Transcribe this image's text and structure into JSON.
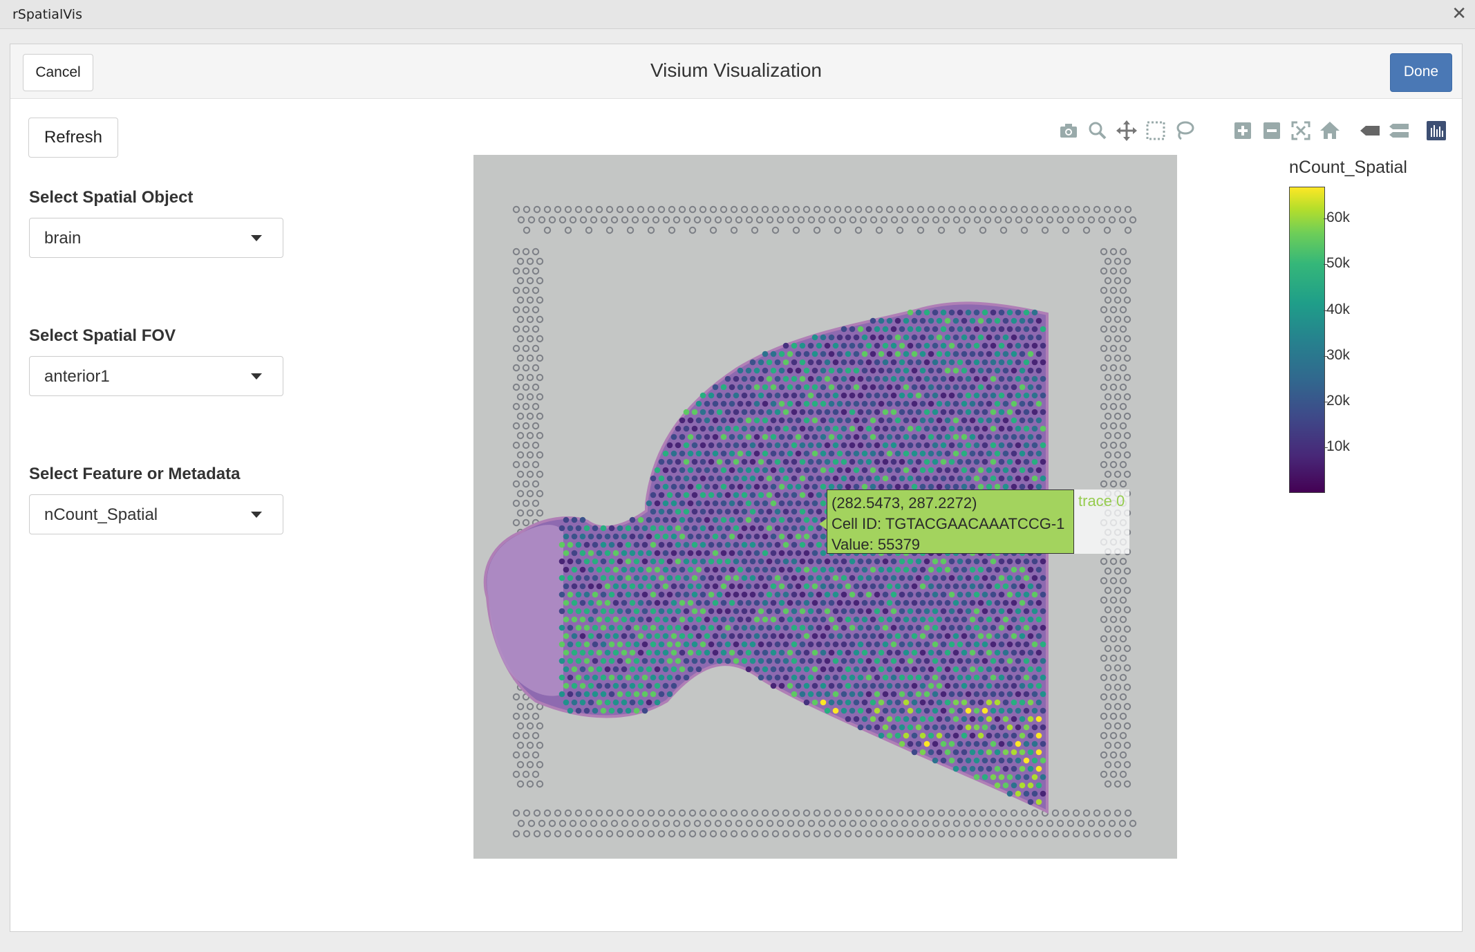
{
  "window": {
    "title": "rSpatialVis",
    "close_glyph": "✕"
  },
  "header": {
    "cancel_label": "Cancel",
    "title": "Visium Visualization",
    "done_label": "Done",
    "done_color": "#4a78b5"
  },
  "sidebar": {
    "refresh_label": "Refresh",
    "fields": [
      {
        "label": "Select Spatial Object",
        "value": "brain"
      },
      {
        "label": "Select Spatial FOV",
        "value": "anterior1"
      },
      {
        "label": "Select Feature or Metadata",
        "value": "nCount_Spatial"
      }
    ]
  },
  "toolbar": {
    "icons": [
      "camera-icon",
      "zoom-icon",
      "pan-icon",
      "box-select-icon",
      "lasso-select-icon",
      "zoom-in-icon",
      "zoom-out-icon",
      "autoscale-icon",
      "reset-axes-icon",
      "hover-closest-icon",
      "hover-compare-icon",
      "plotly-logo-icon"
    ]
  },
  "chart_data": {
    "type": "scatter",
    "title": "",
    "xlabel": "",
    "ylabel": "",
    "colorscale": "viridis",
    "color_range": [
      0,
      67000
    ],
    "colorbar": {
      "title": "nCount_Spatial",
      "ticks": [
        "60k",
        "50k",
        "40k",
        "30k",
        "20k",
        "10k"
      ],
      "tick_values": [
        60000,
        50000,
        40000,
        30000,
        20000,
        10000
      ]
    },
    "series": [
      {
        "name": "trace 0",
        "points": [
          {
            "x": 282.5473,
            "y": 287.2272,
            "cell_id": "TGTACGAACAAATCCG-1",
            "value": 55379
          }
        ]
      }
    ],
    "hover": {
      "coords": "(282.5473, 287.2272)",
      "cell_id": "Cell ID: TGTACGAACAAATCCG-1",
      "value": "Value: 55379",
      "trace": "trace 0",
      "color": "#a3d35e"
    }
  }
}
